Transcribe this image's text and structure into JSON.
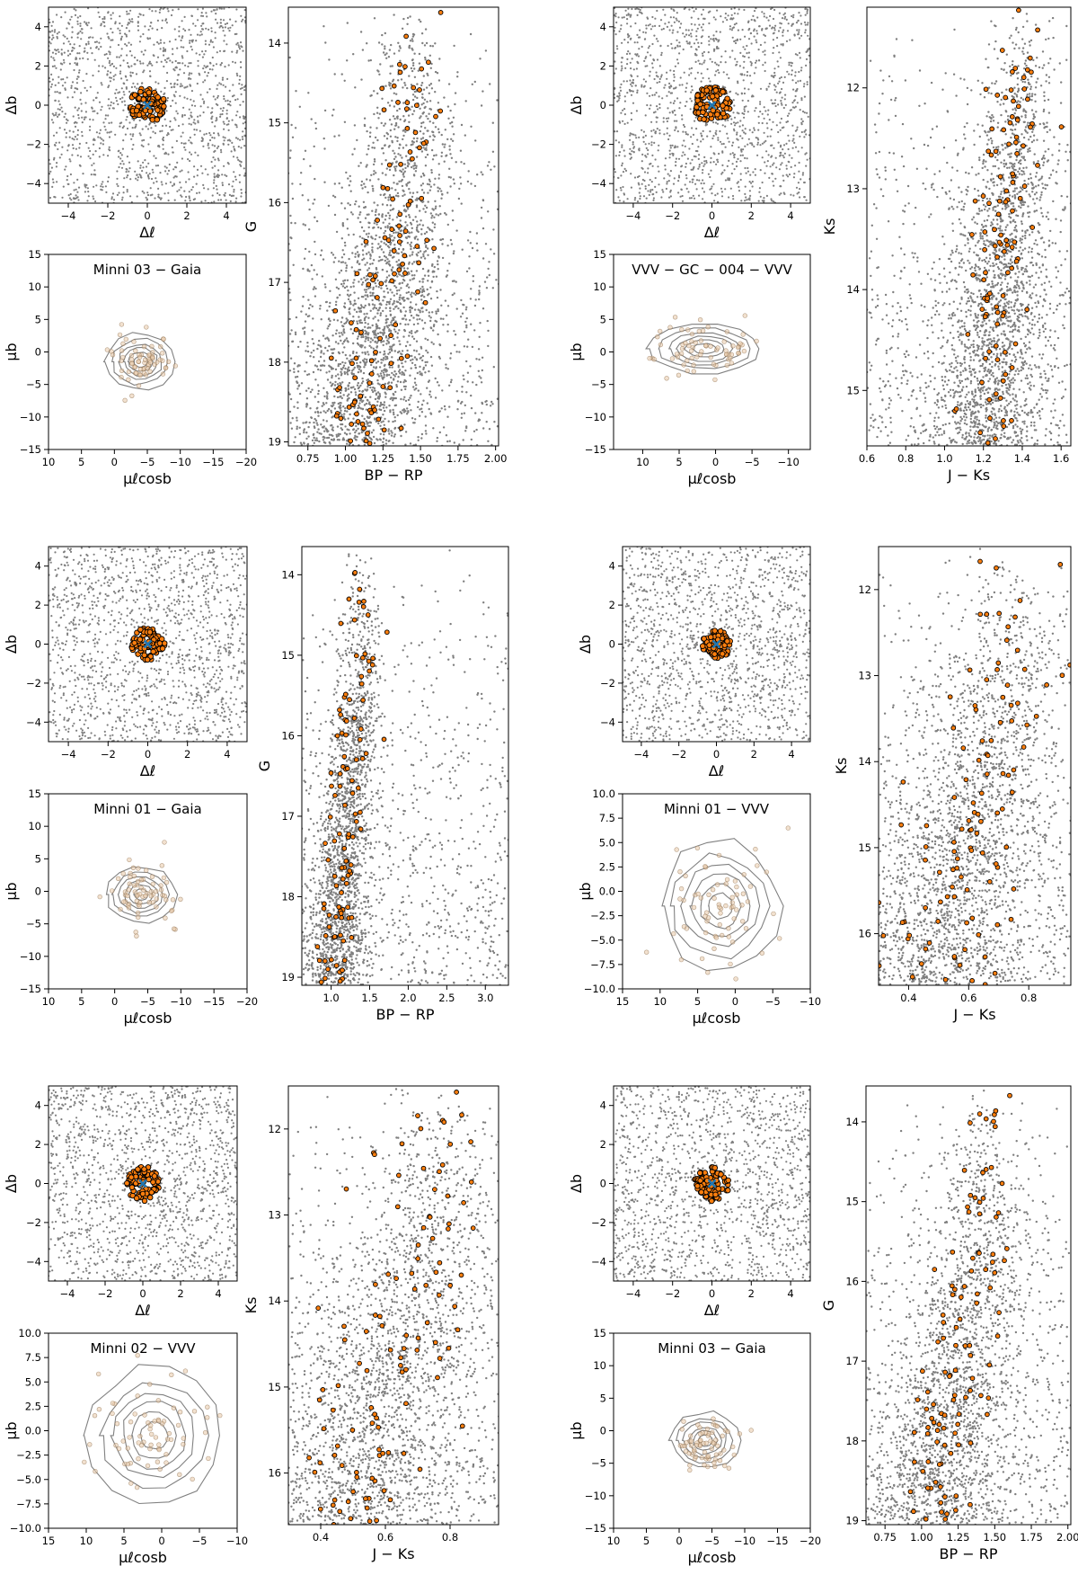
{
  "chart_data": [
    {
      "group": 1,
      "type": "scatter",
      "title": "",
      "panels": {
        "sky": {
          "xlabel": "Δℓ",
          "ylabel": "Δb",
          "xlim": [
            -5,
            5
          ],
          "ylim": [
            -5,
            5
          ],
          "xticks": [
            -4,
            -2,
            0,
            2,
            4
          ],
          "yticks": [
            -4,
            -2,
            0,
            2,
            4
          ],
          "members_radius": 0.9
        },
        "pm": {
          "title": "Minni 03  −  Gaia",
          "xlabel": "μℓcosb",
          "ylabel": "μb",
          "xlim": [
            10,
            -20
          ],
          "ylim": [
            -15,
            15
          ],
          "xticks": [
            10,
            5,
            0,
            -5,
            -10,
            -15,
            -20
          ],
          "yticks": [
            -15,
            -10,
            -5,
            0,
            5,
            10,
            15
          ],
          "center": [
            -4,
            -1.5
          ],
          "spread": [
            3,
            2.5
          ]
        },
        "cmd": {
          "xlabel": "BP − RP",
          "ylabel": "G",
          "xlim": [
            0.62,
            2.02
          ],
          "ylim": [
            19.05,
            13.55
          ],
          "xticks": [
            0.75,
            1.0,
            1.25,
            1.5,
            1.75,
            2.0
          ],
          "yticks": [
            14,
            15,
            16,
            17,
            18,
            19
          ],
          "xtick_decimals": 2,
          "seq": [
            [
              1.05,
              19.0
            ],
            [
              1.15,
              18.0
            ],
            [
              1.25,
              17.2
            ],
            [
              1.35,
              16.3
            ],
            [
              1.42,
              15.4
            ]
          ],
          "seq_width": 0.22
        }
      }
    },
    {
      "group": 2,
      "type": "scatter",
      "title": "",
      "panels": {
        "sky": {
          "xlabel": "Δℓ",
          "ylabel": "Δb",
          "xlim": [
            -5,
            5
          ],
          "ylim": [
            -5,
            5
          ],
          "xticks": [
            -4,
            -2,
            0,
            2,
            4
          ],
          "yticks": [
            -4,
            -2,
            0,
            2,
            4
          ],
          "members_radius": 0.95
        },
        "pm": {
          "title": "VVV − GC − 004  −  VVV",
          "xlabel": "μℓcosb",
          "ylabel": "μb",
          "xlim": [
            14,
            -13
          ],
          "ylim": [
            -15,
            15
          ],
          "xticks": [
            10,
            5,
            0,
            -5,
            -10
          ],
          "yticks": [
            -15,
            -10,
            -5,
            0,
            5,
            10,
            15
          ],
          "center": [
            1.5,
            0.5
          ],
          "spread": [
            4.5,
            2.2
          ]
        },
        "cmd": {
          "xlabel": "J − Ks",
          "ylabel": "Ks",
          "xlim": [
            0.6,
            1.65
          ],
          "ylim": [
            15.55,
            11.2
          ],
          "xticks": [
            0.6,
            0.8,
            1.0,
            1.2,
            1.4,
            1.6
          ],
          "yticks": [
            12,
            13,
            14,
            15
          ],
          "xtick_decimals": 1,
          "seq": [
            [
              1.22,
              15.5
            ],
            [
              1.26,
              14.5
            ],
            [
              1.3,
              13.5
            ],
            [
              1.36,
              12.5
            ],
            [
              1.42,
              11.6
            ]
          ],
          "seq_width": 0.14
        }
      }
    },
    {
      "group": 3,
      "type": "scatter",
      "title": "",
      "panels": {
        "sky": {
          "xlabel": "Δℓ",
          "ylabel": "Δb",
          "xlim": [
            -5,
            5
          ],
          "ylim": [
            -5,
            5
          ],
          "xticks": [
            -4,
            -2,
            0,
            2,
            4
          ],
          "yticks": [
            -4,
            -2,
            0,
            2,
            4
          ],
          "members_radius": 0.85
        },
        "pm": {
          "title": "Minni 01  −  Gaia",
          "xlabel": "μℓcosb",
          "ylabel": "μb",
          "xlim": [
            10,
            -20
          ],
          "ylim": [
            -15,
            15
          ],
          "xticks": [
            10,
            5,
            0,
            -5,
            -10,
            -15,
            -20
          ],
          "yticks": [
            -15,
            -10,
            -5,
            0,
            5,
            10,
            15
          ],
          "center": [
            -4,
            -0.5
          ],
          "spread": [
            3,
            2.5
          ]
        },
        "cmd": {
          "xlabel": "BP − RP",
          "ylabel": "G",
          "xlim": [
            0.62,
            3.3
          ],
          "ylim": [
            19.1,
            13.65
          ],
          "xticks": [
            1.0,
            1.5,
            2.0,
            2.5,
            3.0
          ],
          "yticks": [
            14,
            15,
            16,
            17,
            18,
            19
          ],
          "xtick_decimals": 1,
          "seq": [
            [
              1.05,
              19.0
            ],
            [
              1.15,
              18.0
            ],
            [
              1.2,
              17.0
            ],
            [
              1.3,
              16.0
            ],
            [
              1.4,
              15.1
            ]
          ],
          "seq_width": 0.2
        }
      }
    },
    {
      "group": 4,
      "type": "scatter",
      "title": "",
      "panels": {
        "sky": {
          "xlabel": "Δℓ",
          "ylabel": "Δb",
          "xlim": [
            -5,
            5
          ],
          "ylim": [
            -5,
            5
          ],
          "xticks": [
            -4,
            -2,
            0,
            2,
            4
          ],
          "yticks": [
            -4,
            -2,
            0,
            2,
            4
          ],
          "members_radius": 0.75
        },
        "pm": {
          "title": "Minni 01  −  VVV",
          "xlabel": "μℓcosb",
          "ylabel": "μb",
          "xlim": [
            15,
            -10
          ],
          "ylim": [
            -10,
            10
          ],
          "xticks": [
            15,
            10,
            5,
            0,
            -5,
            -10
          ],
          "yticks": [
            -10.0,
            -7.5,
            -5.0,
            -2.5,
            0.0,
            2.5,
            5.0,
            7.5,
            10.0
          ],
          "ytick_decimals": 1,
          "center": [
            2,
            -1.5
          ],
          "spread": [
            4.5,
            3.8
          ],
          "contour_fixed": true
        },
        "cmd": {
          "xlabel": "J − Ks",
          "ylabel": "Ks",
          "xlim": [
            0.3,
            0.94
          ],
          "ylim": [
            16.6,
            11.5
          ],
          "xticks": [
            0.4,
            0.6,
            0.8
          ],
          "yticks": [
            12,
            13,
            14,
            15,
            16
          ],
          "xtick_decimals": 1,
          "seq": [
            [
              0.5,
              16.5
            ],
            [
              0.55,
              15.5
            ],
            [
              0.62,
              14.5
            ],
            [
              0.68,
              13.5
            ],
            [
              0.74,
              12.6
            ]
          ],
          "seq_width": 0.16
        }
      }
    },
    {
      "group": 5,
      "type": "scatter",
      "title": "",
      "panels": {
        "sky": {
          "xlabel": "Δℓ",
          "ylabel": "Δb",
          "xlim": [
            -5,
            5
          ],
          "ylim": [
            -5,
            5
          ],
          "xticks": [
            -4,
            -2,
            0,
            2,
            4
          ],
          "yticks": [
            -4,
            -2,
            0,
            2,
            4
          ],
          "members_radius": 0.9
        },
        "pm": {
          "title": "Minni 02  −  VVV",
          "xlabel": "μℓcosb",
          "ylabel": "μb",
          "xlim": [
            15,
            -10
          ],
          "ylim": [
            -10,
            10
          ],
          "xticks": [
            15,
            10,
            5,
            0,
            -5,
            -10
          ],
          "yticks": [
            -10.0,
            -7.5,
            -5.0,
            -2.5,
            0.0,
            2.5,
            5.0,
            7.5,
            10.0
          ],
          "ytick_decimals": 1,
          "center": [
            1,
            -0.5
          ],
          "spread": [
            5,
            4
          ],
          "contour_fixed": true
        },
        "cmd": {
          "xlabel": "J − Ks",
          "ylabel": "Ks",
          "xlim": [
            0.3,
            0.95
          ],
          "ylim": [
            16.6,
            11.5
          ],
          "xticks": [
            0.4,
            0.6,
            0.8
          ],
          "yticks": [
            12,
            13,
            14,
            15,
            16
          ],
          "xtick_decimals": 1,
          "seq": [
            [
              0.5,
              16.5
            ],
            [
              0.56,
              15.5
            ],
            [
              0.62,
              14.5
            ],
            [
              0.7,
              13.5
            ],
            [
              0.76,
              12.6
            ]
          ],
          "seq_width": 0.16
        }
      }
    },
    {
      "group": 6,
      "type": "scatter",
      "title": "",
      "panels": {
        "sky": {
          "xlabel": "Δℓ",
          "ylabel": "Δb",
          "xlim": [
            -5,
            5
          ],
          "ylim": [
            -5,
            5
          ],
          "xticks": [
            -4,
            -2,
            0,
            2,
            4
          ],
          "yticks": [
            -4,
            -2,
            0,
            2,
            4
          ],
          "members_radius": 0.9
        },
        "pm": {
          "title": "Minni 03  −  Gaia",
          "xlabel": "μℓcosb",
          "ylabel": "μb",
          "xlim": [
            10,
            -20
          ],
          "ylim": [
            -15,
            15
          ],
          "xticks": [
            10,
            5,
            0,
            -5,
            -10,
            -15,
            -20
          ],
          "yticks": [
            -15,
            -10,
            -5,
            0,
            5,
            10,
            15
          ],
          "center": [
            -4,
            -1.5
          ],
          "spread": [
            3,
            2.5
          ]
        },
        "cmd": {
          "xlabel": "BP − RP",
          "ylabel": "G",
          "xlim": [
            0.62,
            2.02
          ],
          "ylim": [
            19.05,
            13.55
          ],
          "xticks": [
            0.75,
            1.0,
            1.25,
            1.5,
            1.75,
            2.0
          ],
          "yticks": [
            14,
            15,
            16,
            17,
            18,
            19
          ],
          "xtick_decimals": 2,
          "seq": [
            [
              1.05,
              19.0
            ],
            [
              1.15,
              18.0
            ],
            [
              1.25,
              17.2
            ],
            [
              1.35,
              16.3
            ],
            [
              1.42,
              15.4
            ]
          ],
          "seq_width": 0.22
        }
      }
    }
  ],
  "colors": {
    "background_stars": "#7f7f7f",
    "members": "#ff7f0e",
    "center": "#1f77b4",
    "contours": "#808080"
  }
}
